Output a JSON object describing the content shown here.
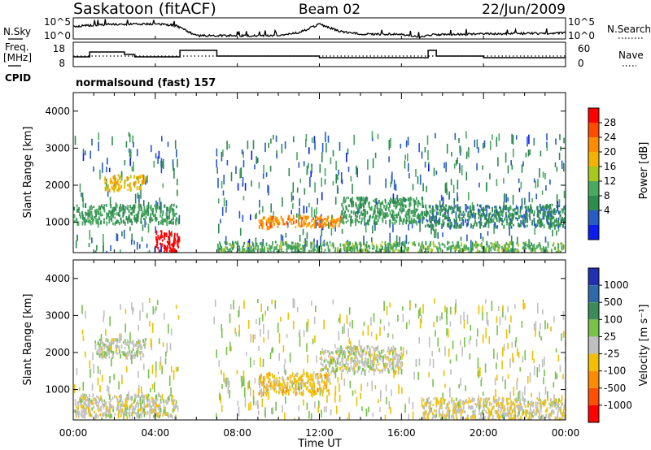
{
  "header": {
    "station": "Saskatoon (fitACF)",
    "beam": "Beam 02",
    "date": "22/Jun/2009",
    "cpid_label": "CPID",
    "cpid_value": "normalsound (fast) 157"
  },
  "noise_panel": {
    "left_label": "N.Sky",
    "right_label": "N.Search",
    "left_ticks": [
      "10^5",
      "10^0"
    ],
    "right_ticks": [
      "10^5",
      "10^0"
    ]
  },
  "freq_panel": {
    "left_label_line1": "Freq.",
    "left_label_line2": "[MHz]",
    "right_label": "Nave",
    "left_ticks": [
      "18",
      "8"
    ],
    "right_ticks": [
      "60",
      "0"
    ]
  },
  "power_panel": {
    "ylabel": "Slant Range [km]",
    "colorbar_label": "Power [dB]",
    "colorbar_ticks": [
      "28",
      "24",
      "20",
      "16",
      "12",
      "8",
      "4"
    ],
    "colorbar_colors": [
      "#ff0000",
      "#ff4a00",
      "#ff8c00",
      "#f2b400",
      "#a8c81e",
      "#4aa860",
      "#2f8c4f",
      "#265cc4",
      "#0a1cf0"
    ]
  },
  "velocity_panel": {
    "ylabel": "Slant Range [km]",
    "colorbar_label": "Velocity [m s⁻¹]",
    "colorbar_ticks": [
      "1000",
      "500",
      "100",
      "25",
      "-25",
      "-100",
      "-500",
      "-1000"
    ],
    "colorbar_colors": [
      "#2030b0",
      "#2f6aa8",
      "#3c8c5a",
      "#76c24a",
      "#c0c0c0",
      "#f2c000",
      "#ff8c00",
      "#ff5000",
      "#ff0000"
    ]
  },
  "xaxis": {
    "label": "Time UT",
    "ticks": [
      "00:00",
      "04:00",
      "08:00",
      "12:00",
      "16:00",
      "20:00",
      "00:00"
    ]
  },
  "chart_data": {
    "type": "heatmap",
    "xlabel": "Time UT",
    "ylabel": "Slant Range [km]",
    "xlim": [
      "00:00",
      "24:00"
    ],
    "ylim": [
      180,
      4500
    ],
    "yticks": [
      1000,
      2000,
      3000,
      4000
    ],
    "data_gap": [
      "05:10",
      "06:50"
    ],
    "power_db": {
      "colorbar_range": [
        0,
        30
      ],
      "regions": [
        {
          "time": [
            "04:00",
            "05:10"
          ],
          "range": [
            200,
            800
          ],
          "power": 30
        },
        {
          "time": [
            "00:00",
            "05:00"
          ],
          "range": [
            1000,
            1500
          ],
          "power": 10
        },
        {
          "time": [
            "01:30",
            "03:30"
          ],
          "range": [
            1900,
            2300
          ],
          "power": 18
        },
        {
          "time": [
            "09:00",
            "13:00"
          ],
          "range": [
            900,
            1200
          ],
          "power": 22
        },
        {
          "time": [
            "07:00",
            "24:00"
          ],
          "range": [
            200,
            500
          ],
          "power": 12
        },
        {
          "time": [
            "13:00",
            "17:00"
          ],
          "range": [
            1000,
            1700
          ],
          "power": 10
        },
        {
          "time": [
            "17:00",
            "24:00"
          ],
          "range": [
            900,
            1500
          ],
          "power": 8
        }
      ]
    },
    "velocity_ms": {
      "colorbar_range": [
        -1000,
        1000
      ],
      "regions": [
        {
          "time": [
            "00:00",
            "05:00"
          ],
          "range": [
            300,
            900
          ],
          "velocity": 0
        },
        {
          "time": [
            "09:00",
            "12:30"
          ],
          "range": [
            900,
            1500
          ],
          "velocity": -200
        },
        {
          "time": [
            "01:00",
            "03:30"
          ],
          "range": [
            1900,
            2400
          ],
          "velocity": 50
        },
        {
          "time": [
            "12:00",
            "16:00"
          ],
          "range": [
            1500,
            2200
          ],
          "velocity": 0
        },
        {
          "time": [
            "17:00",
            "24:00"
          ],
          "range": [
            200,
            800
          ],
          "velocity": -50
        }
      ]
    },
    "noise_trace": {
      "series": "N.Sky",
      "scale": "log",
      "values": [
        [
          0,
          3
        ],
        [
          2,
          3.5
        ],
        [
          4,
          3.6
        ],
        [
          5,
          3.2
        ],
        [
          6,
          0.8
        ],
        [
          8,
          0.8
        ],
        [
          10,
          0.8
        ],
        [
          11,
          1.5
        ],
        [
          12,
          3.5
        ],
        [
          13,
          1.8
        ],
        [
          14,
          1.2
        ],
        [
          16,
          1.1
        ],
        [
          16.8,
          0.4
        ],
        [
          17.5,
          1.0
        ],
        [
          20,
          1.2
        ],
        [
          24,
          1.4
        ]
      ]
    },
    "frequency_trace": {
      "series": "Freq. [MHz]",
      "values": [
        [
          0,
          11
        ],
        [
          0.8,
          14
        ],
        [
          2,
          14
        ],
        [
          2.5,
          12.5
        ],
        [
          3,
          11
        ],
        [
          4,
          11
        ],
        [
          5,
          11
        ],
        [
          5.2,
          15
        ],
        [
          6.8,
          15
        ],
        [
          7,
          11.5
        ],
        [
          11,
          11.5
        ],
        [
          12,
          10.5
        ],
        [
          17,
          10.5
        ],
        [
          17.3,
          15
        ],
        [
          17.7,
          11.5
        ],
        [
          20,
          10.5
        ],
        [
          24,
          10.5
        ]
      ]
    },
    "nave_reference": {
      "series": "Nave",
      "value": 30
    }
  }
}
